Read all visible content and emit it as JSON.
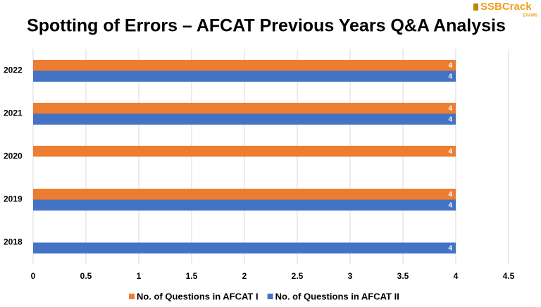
{
  "chart_data": {
    "type": "hbar",
    "title": "Spotting of Errors – AFCAT Previous Years Q&A Analysis",
    "logo": "SSBCrack",
    "logo_sub": "EXAMS",
    "categories": [
      "2022",
      "2021",
      "2020",
      "2019",
      "2018"
    ],
    "series": [
      {
        "name": "No. of Questions in AFCAT I",
        "color": "#ed7d31",
        "values": [
          4,
          4,
          4,
          4,
          null
        ]
      },
      {
        "name": "No. of Questions in AFCAT II",
        "color": "#4472c4",
        "values": [
          4,
          4,
          null,
          4,
          4
        ]
      }
    ],
    "xlim": [
      0,
      4.5
    ],
    "xticks": [
      0,
      0.5,
      1,
      1.5,
      2,
      2.5,
      3,
      3.5,
      4,
      4.5
    ],
    "grid": true
  }
}
